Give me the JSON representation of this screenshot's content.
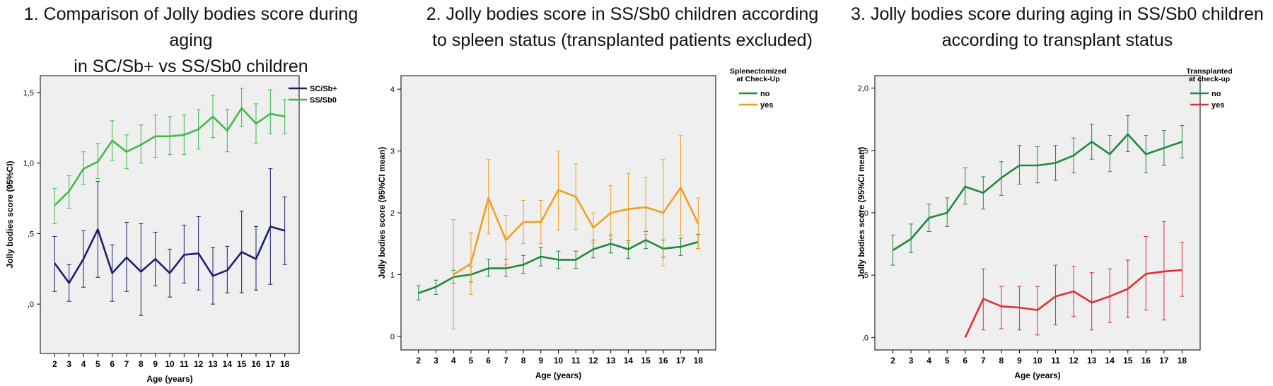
{
  "chart_data": [
    {
      "type": "line",
      "title": "1. Comparison of Jolly bodies score during aging\nin SC/Sb+ vs SS/Sb0 children",
      "xlabel": "Age (years)",
      "ylabel": "Jolly bodies score (95%CI)",
      "categories": [
        "2",
        "3",
        "4",
        "5",
        "6",
        "7",
        "8",
        "9",
        "10",
        "11",
        "12",
        "13",
        "14",
        "15",
        "16",
        "17",
        "18"
      ],
      "yticks": [
        ",0",
        ",5",
        "1,0",
        "1,5"
      ],
      "ylim": [
        -0.35,
        1.62
      ],
      "grid": false,
      "legend_title": "",
      "legend_position": "top-right",
      "series": [
        {
          "name": "SC/Sb+",
          "color": "#1f1f6e",
          "x": [
            "2",
            "3",
            "4",
            "5",
            "6",
            "7",
            "8",
            "9",
            "10",
            "11",
            "12",
            "13",
            "14",
            "15",
            "16",
            "17",
            "18"
          ],
          "values": [
            0.29,
            0.15,
            0.32,
            0.53,
            0.22,
            0.33,
            0.23,
            0.32,
            0.22,
            0.35,
            0.36,
            0.2,
            0.24,
            0.37,
            0.32,
            0.55,
            0.52
          ],
          "lower": [
            0.09,
            0.02,
            0.12,
            0.19,
            0.02,
            0.09,
            -0.08,
            0.13,
            0.05,
            0.15,
            0.1,
            0.0,
            0.08,
            0.08,
            0.1,
            0.14,
            0.28
          ],
          "upper": [
            0.48,
            0.28,
            0.52,
            0.87,
            0.42,
            0.58,
            0.57,
            0.51,
            0.39,
            0.56,
            0.62,
            0.4,
            0.41,
            0.66,
            0.55,
            0.96,
            0.76
          ]
        },
        {
          "name": "SS/Sb0",
          "color": "#3dbb4a",
          "x": [
            "2",
            "3",
            "4",
            "5",
            "6",
            "7",
            "8",
            "9",
            "10",
            "11",
            "12",
            "13",
            "14",
            "15",
            "16",
            "17",
            "18"
          ],
          "values": [
            0.7,
            0.8,
            0.96,
            1.01,
            1.16,
            1.08,
            1.13,
            1.19,
            1.19,
            1.2,
            1.24,
            1.33,
            1.23,
            1.39,
            1.28,
            1.35,
            1.33
          ],
          "lower": [
            0.57,
            0.68,
            0.85,
            0.89,
            1.02,
            0.96,
            1.0,
            1.04,
            1.06,
            1.06,
            1.1,
            1.18,
            1.08,
            1.26,
            1.14,
            1.21,
            1.21
          ],
          "upper": [
            0.82,
            0.91,
            1.08,
            1.14,
            1.3,
            1.2,
            1.27,
            1.34,
            1.33,
            1.34,
            1.38,
            1.48,
            1.38,
            1.53,
            1.42,
            1.52,
            1.45
          ]
        }
      ]
    },
    {
      "type": "line",
      "title": "2. Jolly bodies score in SS/Sb0 children according\nto spleen status (transplanted patients excluded)",
      "xlabel": "Age (years)",
      "ylabel": "Jolly bodies score (95%CI mean)",
      "categories": [
        "2",
        "3",
        "4",
        "5",
        "6",
        "7",
        "8",
        "9",
        "10",
        "11",
        "12",
        "13",
        "14",
        "15",
        "16",
        "17",
        "18"
      ],
      "yticks": [
        "0",
        "1",
        "2",
        "3",
        "4"
      ],
      "ylim": [
        -0.22,
        4.22
      ],
      "grid": false,
      "legend_title": "Splenectomized\nat Check-Up",
      "legend_position": "top-right",
      "series": [
        {
          "name": "no",
          "color": "#1e8a3a",
          "x": [
            "2",
            "3",
            "4",
            "5",
            "6",
            "7",
            "8",
            "9",
            "10",
            "11",
            "12",
            "13",
            "14",
            "15",
            "16",
            "17",
            "18"
          ],
          "values": [
            0.7,
            0.8,
            0.96,
            1.0,
            1.1,
            1.1,
            1.16,
            1.29,
            1.24,
            1.24,
            1.41,
            1.5,
            1.41,
            1.56,
            1.42,
            1.45,
            1.53
          ],
          "lower": [
            0.59,
            0.68,
            0.86,
            0.88,
            0.97,
            0.97,
            1.02,
            1.14,
            1.1,
            1.1,
            1.27,
            1.35,
            1.26,
            1.42,
            1.28,
            1.31,
            1.42
          ],
          "upper": [
            0.82,
            0.91,
            1.07,
            1.13,
            1.25,
            1.25,
            1.31,
            1.44,
            1.38,
            1.38,
            1.56,
            1.64,
            1.55,
            1.7,
            1.56,
            1.59,
            1.65
          ]
        },
        {
          "name": "yes",
          "color": "#f0a020",
          "x": [
            "4",
            "5",
            "6",
            "7",
            "8",
            "9",
            "10",
            "11",
            "12",
            "13",
            "14",
            "15",
            "16",
            "17",
            "18"
          ],
          "values": [
            1.0,
            1.18,
            2.24,
            1.56,
            1.85,
            1.85,
            2.37,
            2.26,
            1.76,
            2.0,
            2.06,
            2.09,
            2.0,
            2.41,
            1.82
          ],
          "lower": [
            0.12,
            0.68,
            1.66,
            1.16,
            1.5,
            1.5,
            1.72,
            1.73,
            1.52,
            1.57,
            1.52,
            1.65,
            1.14,
            1.63,
            1.42
          ],
          "upper": [
            1.89,
            1.68,
            2.86,
            1.96,
            2.2,
            2.2,
            3.0,
            2.79,
            2.0,
            2.44,
            2.64,
            2.57,
            2.86,
            3.25,
            2.24
          ]
        }
      ]
    },
    {
      "type": "line",
      "title": "3. Jolly bodies score during aging in SS/Sb0 children\naccording to transplant status",
      "xlabel": "Age (years)",
      "ylabel": "Jolly bodies score (95%CI mean)",
      "categories": [
        "2",
        "3",
        "4",
        "5",
        "6",
        "7",
        "8",
        "9",
        "10",
        "11",
        "12",
        "13",
        "14",
        "15",
        "16",
        "17",
        "18"
      ],
      "yticks": [
        ",0",
        ",5",
        "1,0",
        "1,5",
        "2,0"
      ],
      "ylim": [
        -0.1,
        2.1
      ],
      "grid": false,
      "legend_title": "Transplanted\nat check-up",
      "legend_position": "top-right",
      "series": [
        {
          "name": "no",
          "color": "#1e8a3a",
          "x": [
            "2",
            "3",
            "4",
            "5",
            "6",
            "7",
            "8",
            "9",
            "10",
            "11",
            "12",
            "13",
            "14",
            "15",
            "16",
            "17",
            "18"
          ],
          "values": [
            0.7,
            0.79,
            0.96,
            1.0,
            1.21,
            1.16,
            1.28,
            1.38,
            1.38,
            1.4,
            1.46,
            1.57,
            1.47,
            1.63,
            1.47,
            1.52,
            1.57
          ],
          "lower": [
            0.58,
            0.68,
            0.85,
            0.89,
            1.07,
            1.03,
            1.14,
            1.23,
            1.24,
            1.26,
            1.32,
            1.43,
            1.33,
            1.49,
            1.32,
            1.38,
            1.44
          ],
          "upper": [
            0.82,
            0.91,
            1.07,
            1.12,
            1.36,
            1.29,
            1.41,
            1.54,
            1.53,
            1.54,
            1.6,
            1.71,
            1.62,
            1.78,
            1.62,
            1.66,
            1.7
          ]
        },
        {
          "name": "yes",
          "color": "#e03030",
          "x": [
            "6",
            "7",
            "8",
            "9",
            "10",
            "11",
            "12",
            "13",
            "14",
            "15",
            "16",
            "17",
            "18"
          ],
          "values": [
            0.0,
            0.31,
            0.25,
            0.24,
            0.22,
            0.33,
            0.37,
            0.28,
            0.33,
            0.39,
            0.51,
            0.53,
            0.54
          ],
          "lower": [
            0.0,
            0.06,
            0.07,
            0.06,
            0.02,
            0.1,
            0.17,
            0.06,
            0.12,
            0.16,
            0.22,
            0.14,
            0.33
          ],
          "upper": [
            0.0,
            0.55,
            0.41,
            0.41,
            0.41,
            0.58,
            0.57,
            0.52,
            0.55,
            0.62,
            0.81,
            0.93,
            0.76
          ]
        }
      ]
    }
  ]
}
